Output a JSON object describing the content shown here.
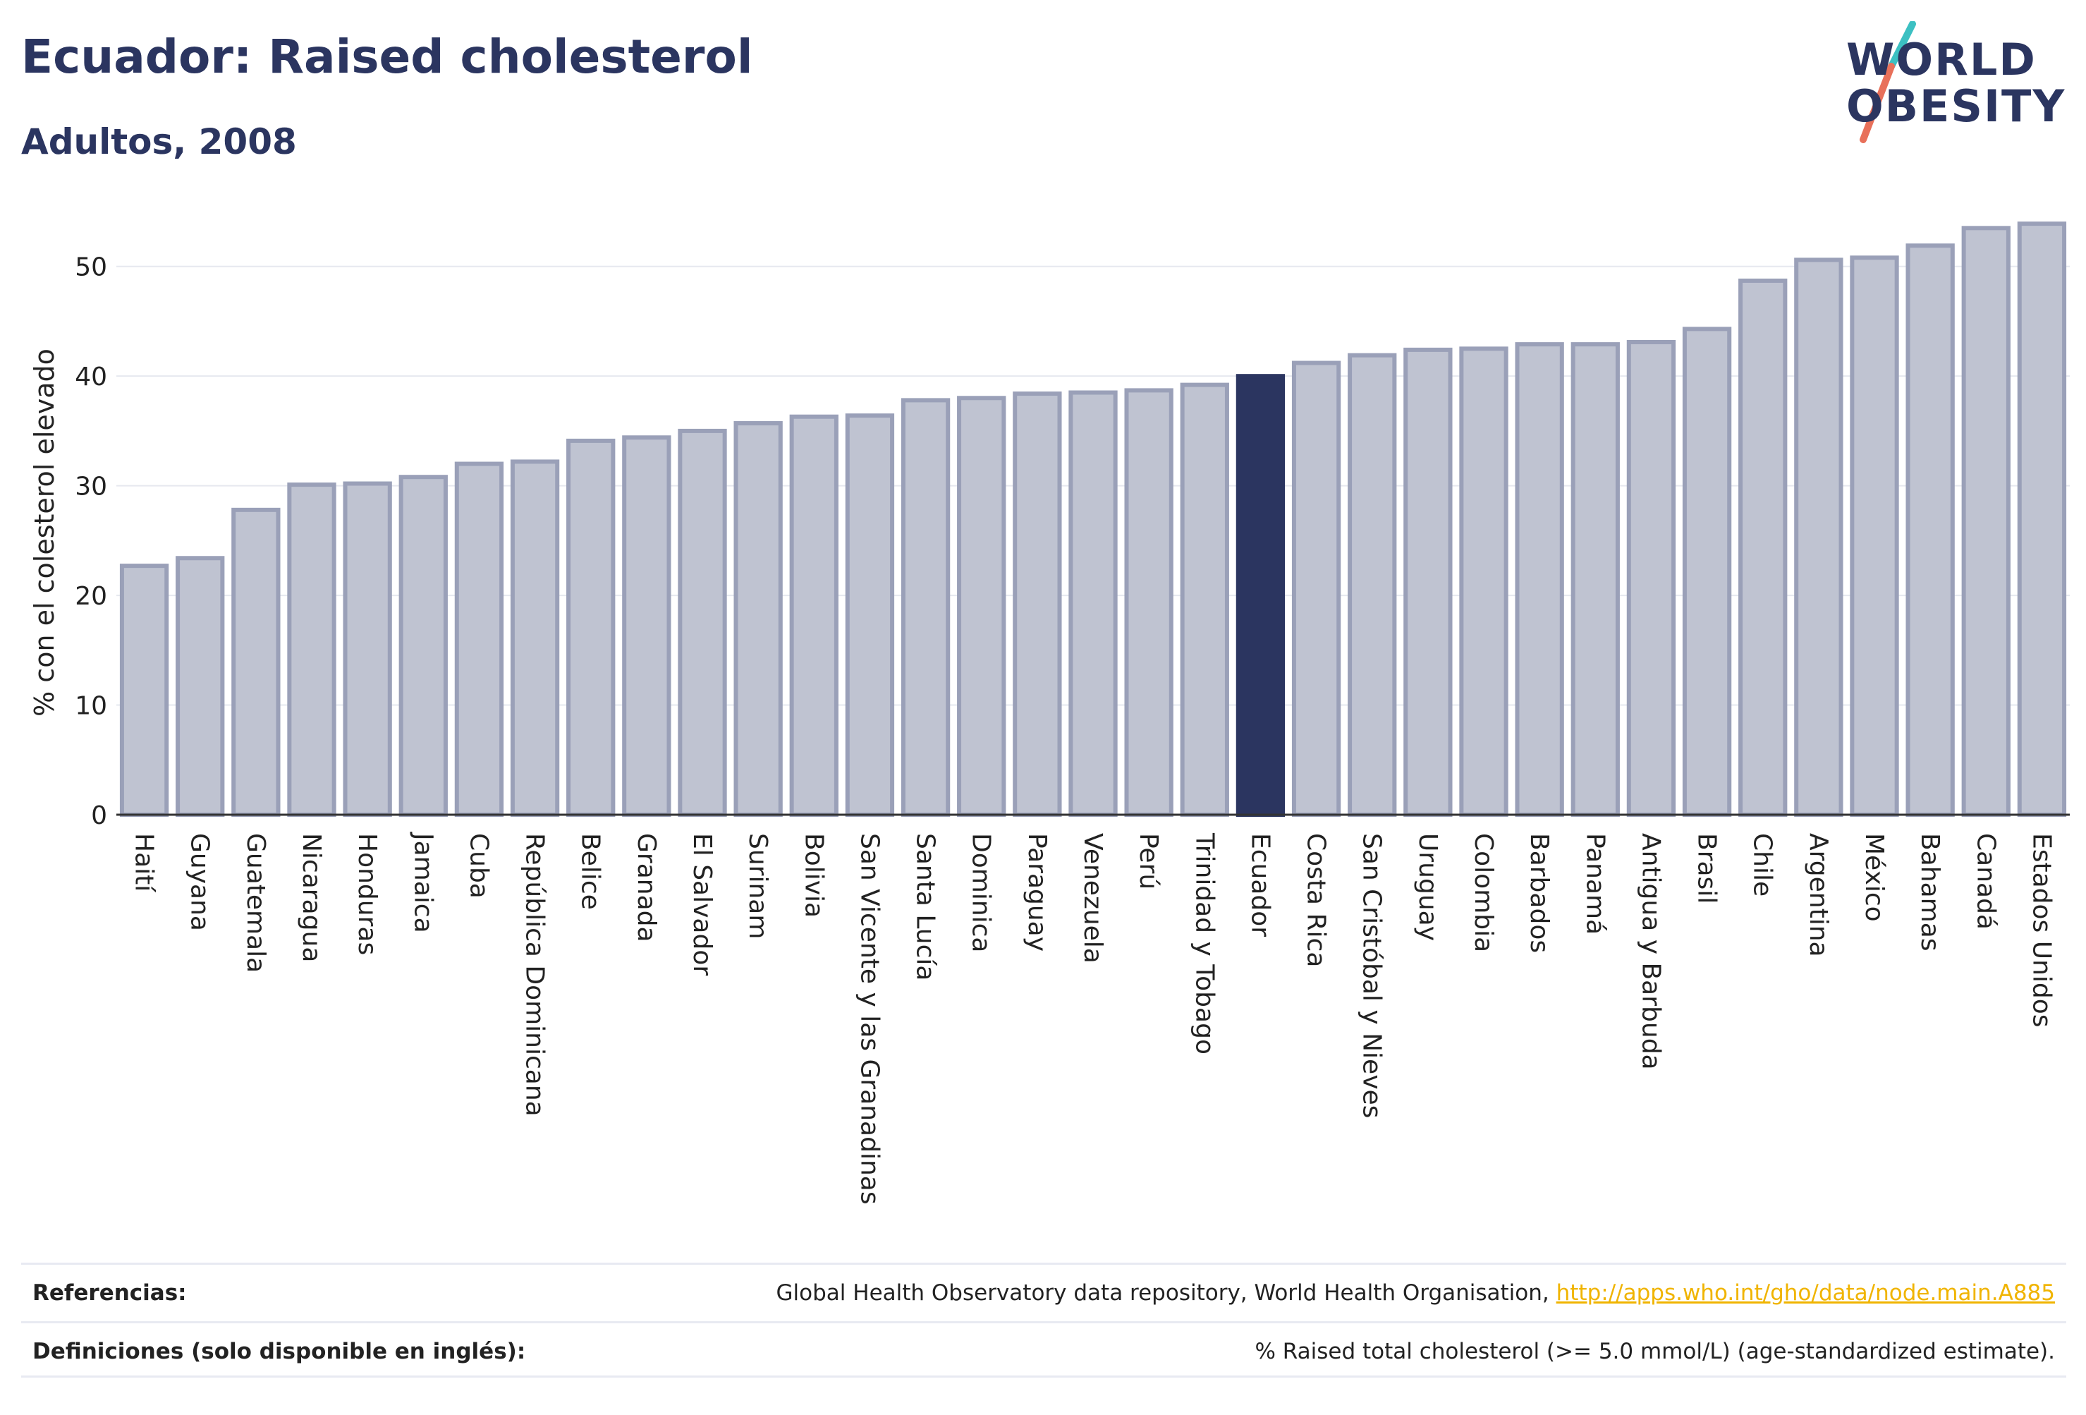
{
  "header": {
    "title": "Ecuador: Raised cholesterol",
    "subtitle": "Adultos, 2008"
  },
  "logo": {
    "line1": "WORLD",
    "line2": "OBESITY",
    "accent_colors": [
      "#3cc0c2",
      "#e8705a"
    ]
  },
  "colors": {
    "bar": "#bfc3d1",
    "bar_border": "#9aa0b8",
    "highlight": "#2b3560",
    "grid": "#e6e8ef",
    "axis": "#333333"
  },
  "chart_data": {
    "type": "bar",
    "title": "Ecuador: Raised cholesterol",
    "subtitle": "Adultos, 2008",
    "xlabel": "",
    "ylabel": "% con el colesterol elevado",
    "ylim": [
      0,
      55
    ],
    "yticks": [
      0,
      10,
      20,
      30,
      40,
      50
    ],
    "grid": true,
    "highlight_category": "Ecuador",
    "categories": [
      "Haití",
      "Guyana",
      "Guatemala",
      "Nicaragua",
      "Honduras",
      "Jamaica",
      "Cuba",
      "República Dominicana",
      "Belice",
      "Granada",
      "El Salvador",
      "Surinam",
      "Bolivia",
      "San Vicente y las Granadinas",
      "Santa Lucía",
      "Dominica",
      "Paraguay",
      "Venezuela",
      "Perú",
      "Trinidad y Tobago",
      "Ecuador",
      "Costa Rica",
      "San Cristóbal y Nieves",
      "Uruguay",
      "Colombia",
      "Barbados",
      "Panamá",
      "Antigua y Barbuda",
      "Brasil",
      "Chile",
      "Argentina",
      "México",
      "Bahamas",
      "Canadá",
      "Estados Unidos"
    ],
    "values": [
      22.7,
      23.4,
      27.8,
      30.1,
      30.2,
      30.8,
      32.0,
      32.2,
      34.1,
      34.4,
      35.0,
      35.7,
      36.3,
      36.4,
      37.8,
      38.0,
      38.4,
      38.5,
      38.7,
      39.2,
      40.0,
      41.2,
      41.9,
      42.4,
      42.5,
      42.9,
      42.9,
      43.1,
      44.3,
      48.7,
      50.6,
      50.8,
      51.9,
      53.5,
      53.9
    ]
  },
  "footer": {
    "references_label": "Referencias:",
    "references_text": "Global Health Observatory data repository, World Health Organisation, ",
    "references_link": "http://apps.who.int/gho/data/node.main.A885",
    "definitions_label": "Definiciones (solo disponible en inglés):",
    "definitions_text": "% Raised total cholesterol (>= 5.0 mmol/L) (age-standardized estimate)."
  }
}
